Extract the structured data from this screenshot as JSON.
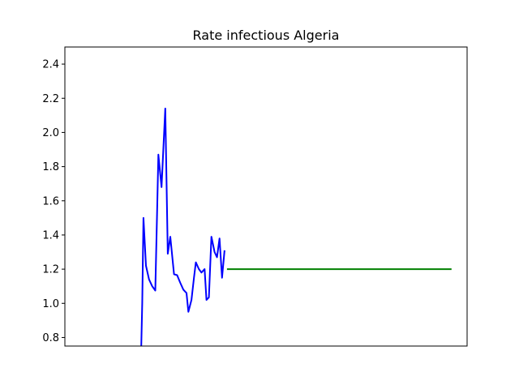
{
  "chart_data": {
    "type": "line",
    "title": "Rate infectious Algeria",
    "xlabel": "",
    "ylabel": "",
    "ylim": [
      0.75,
      2.5
    ],
    "xlim": [
      0,
      129
    ],
    "x_ticks_visible": false,
    "y_ticks": [
      "0.8",
      "1.0",
      "1.2",
      "1.4",
      "1.6",
      "1.8",
      "2.0",
      "2.2",
      "2.4"
    ],
    "grid": false,
    "colors": {
      "observed": "#0000ff",
      "projection": "#008000"
    },
    "series": [
      {
        "values": [
          [
            24.5,
            0.75
          ],
          [
            24.8,
            1.0
          ],
          [
            25.2,
            1.5
          ],
          [
            26,
            1.22
          ],
          [
            27,
            1.14
          ],
          [
            28,
            1.1
          ],
          [
            29,
            1.075
          ],
          [
            29.6,
            1.55
          ],
          [
            30,
            1.87
          ],
          [
            31,
            1.68
          ],
          [
            32.2,
            2.14
          ],
          [
            33,
            1.29
          ],
          [
            33.8,
            1.39
          ],
          [
            35,
            1.17
          ],
          [
            36,
            1.165
          ],
          [
            37,
            1.12
          ],
          [
            38,
            1.08
          ],
          [
            39,
            1.06
          ],
          [
            39.6,
            0.95
          ],
          [
            40.6,
            1.02
          ],
          [
            41.4,
            1.15
          ],
          [
            42,
            1.24
          ],
          [
            43,
            1.2
          ],
          [
            43.8,
            1.18
          ],
          [
            44.8,
            1.2
          ],
          [
            45.4,
            1.02
          ],
          [
            46.2,
            1.035
          ],
          [
            47,
            1.39
          ],
          [
            48,
            1.3
          ],
          [
            48.8,
            1.27
          ],
          [
            49.6,
            1.38
          ],
          [
            50.4,
            1.15
          ],
          [
            51.2,
            1.31
          ]
        ]
      },
      {
        "values": [
          [
            52,
            1.2
          ],
          [
            124,
            1.2
          ]
        ]
      }
    ]
  }
}
